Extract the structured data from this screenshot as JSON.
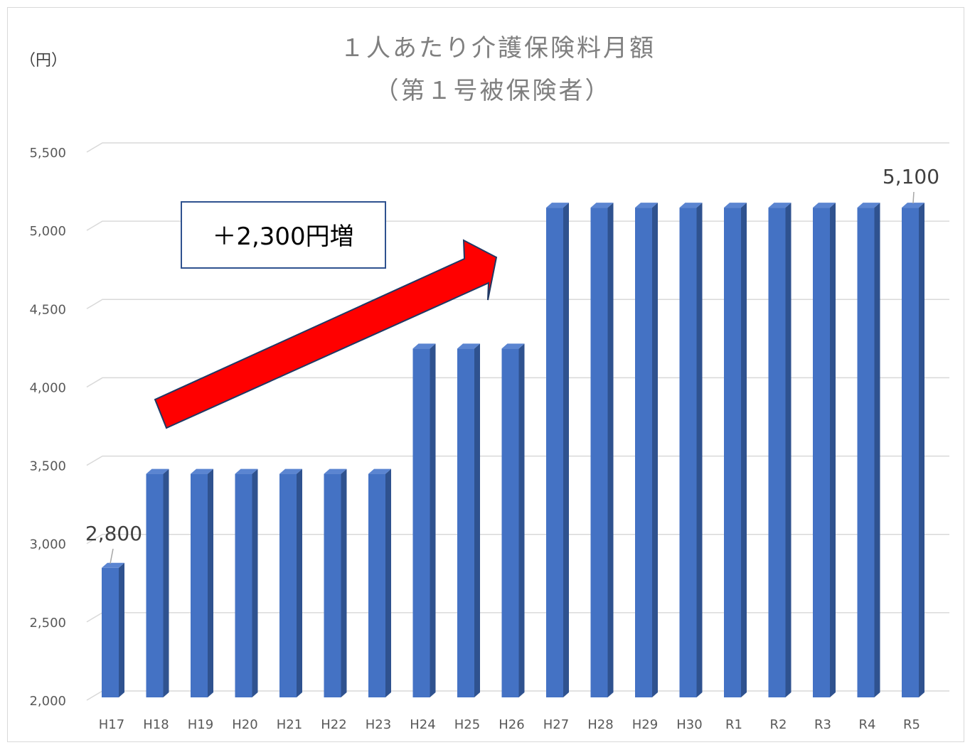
{
  "chart_data": {
    "type": "bar",
    "title_lines": [
      "１人あたり介護保険料月額",
      "（第１号被保険者）"
    ],
    "unit_label": "（円）",
    "categories": [
      "H17",
      "H18",
      "H19",
      "H20",
      "H21",
      "H22",
      "H23",
      "H24",
      "H25",
      "H26",
      "H27",
      "H28",
      "H29",
      "H30",
      "R1",
      "R2",
      "R3",
      "R4",
      "R5"
    ],
    "series": [
      {
        "values": [
          2800,
          3400,
          3400,
          3400,
          3400,
          3400,
          3400,
          4200,
          4200,
          4200,
          5100,
          5100,
          5100,
          5100,
          5100,
          5100,
          5100,
          5100,
          5100
        ]
      }
    ],
    "ylim": [
      2000,
      5500
    ],
    "yticks": [
      2000,
      2500,
      3000,
      3500,
      4000,
      4500,
      5000,
      5500
    ],
    "ytick_labels": [
      "2,000",
      "2,500",
      "3,000",
      "3,500",
      "4,000",
      "4,500",
      "5,000",
      "5,500"
    ],
    "data_labels": [
      {
        "category": "H17",
        "text": "2,800"
      },
      {
        "category": "R5",
        "text": "5,100"
      }
    ],
    "annotation": {
      "text": "＋2,300円増"
    },
    "grid": true,
    "legend": "none",
    "colors": {
      "bar_front": "#4472c4",
      "bar_side": "#2f528f",
      "bar_top": "#5b85d1",
      "arrow": "#ff0000"
    }
  }
}
